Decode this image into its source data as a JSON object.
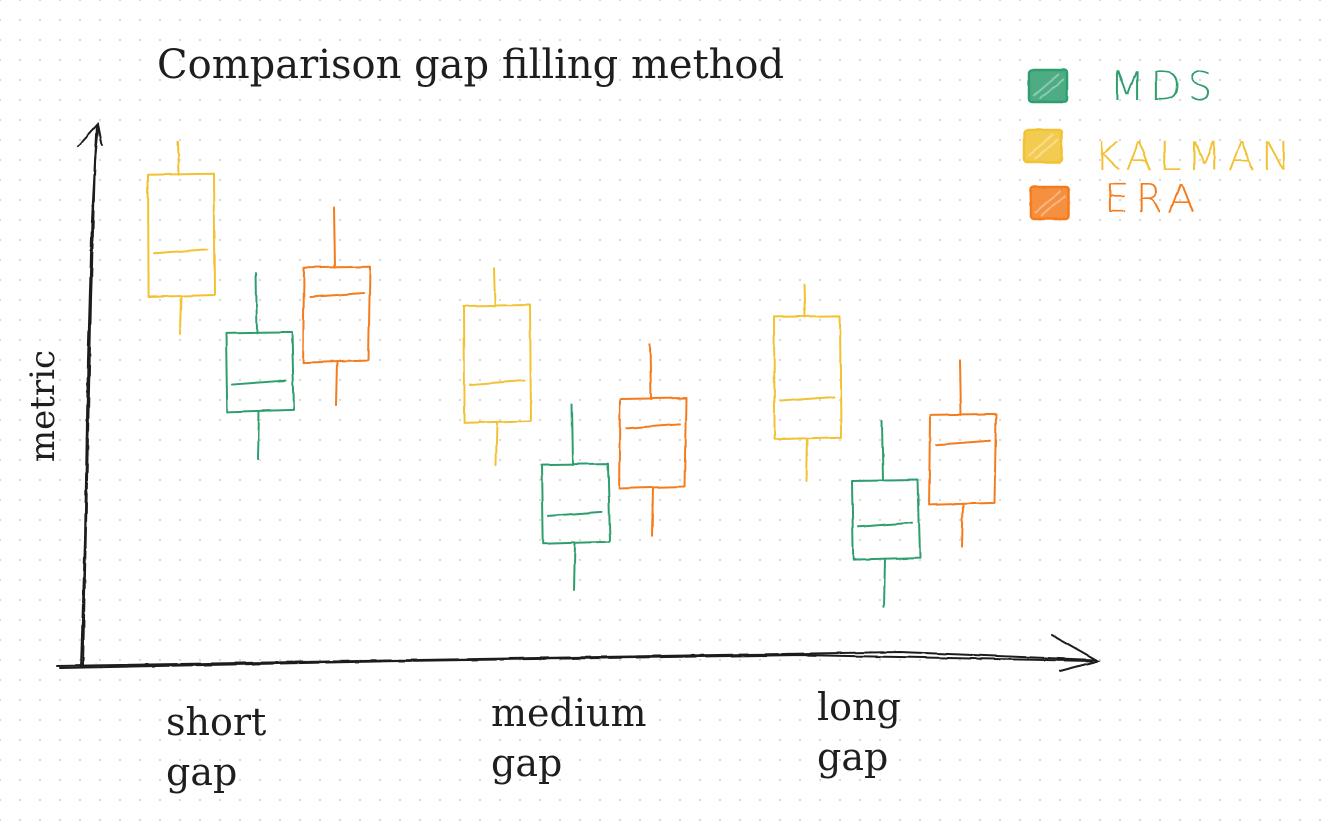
{
  "chart_data": {
    "type": "box",
    "title": "Comparison gap filling method",
    "xlabel": "",
    "ylabel": "metric",
    "categories": [
      "short gap",
      "medium gap",
      "long gap"
    ],
    "category_lines": [
      [
        "short",
        "gap"
      ],
      [
        "medium",
        "gap"
      ],
      [
        "long",
        "gap"
      ]
    ],
    "ylim": [
      0,
      10
    ],
    "legend_position": "top-right",
    "series": [
      {
        "name": "MDS",
        "color": "#2f9e6e",
        "boxes": [
          {
            "whisker_low": 3.8,
            "q1": 4.7,
            "median": 5.2,
            "q3": 6.1,
            "whisker_high": 7.2
          },
          {
            "whisker_low": 1.4,
            "q1": 2.3,
            "median": 2.8,
            "q3": 3.7,
            "whisker_high": 4.8
          },
          {
            "whisker_low": 1.1,
            "q1": 2.0,
            "median": 2.6,
            "q3": 3.4,
            "whisker_high": 4.5
          }
        ]
      },
      {
        "name": "KALMAN",
        "color": "#f2c232",
        "boxes": [
          {
            "whisker_low": 6.1,
            "q1": 6.8,
            "median": 7.6,
            "q3": 9.0,
            "whisker_high": 9.6
          },
          {
            "whisker_low": 3.7,
            "q1": 4.5,
            "median": 5.2,
            "q3": 6.6,
            "whisker_high": 7.3
          },
          {
            "whisker_low": 3.4,
            "q1": 4.2,
            "median": 4.9,
            "q3": 6.4,
            "whisker_high": 7.0
          }
        ]
      },
      {
        "name": "ERA",
        "color": "#f57c1f",
        "boxes": [
          {
            "whisker_low": 4.8,
            "q1": 5.6,
            "median": 6.8,
            "q3": 7.3,
            "whisker_high": 8.4
          },
          {
            "whisker_low": 2.4,
            "q1": 3.3,
            "median": 4.4,
            "q3": 4.9,
            "whisker_high": 5.9
          },
          {
            "whisker_low": 2.2,
            "q1": 3.0,
            "median": 4.1,
            "q3": 4.6,
            "whisker_high": 5.6
          }
        ]
      }
    ]
  }
}
